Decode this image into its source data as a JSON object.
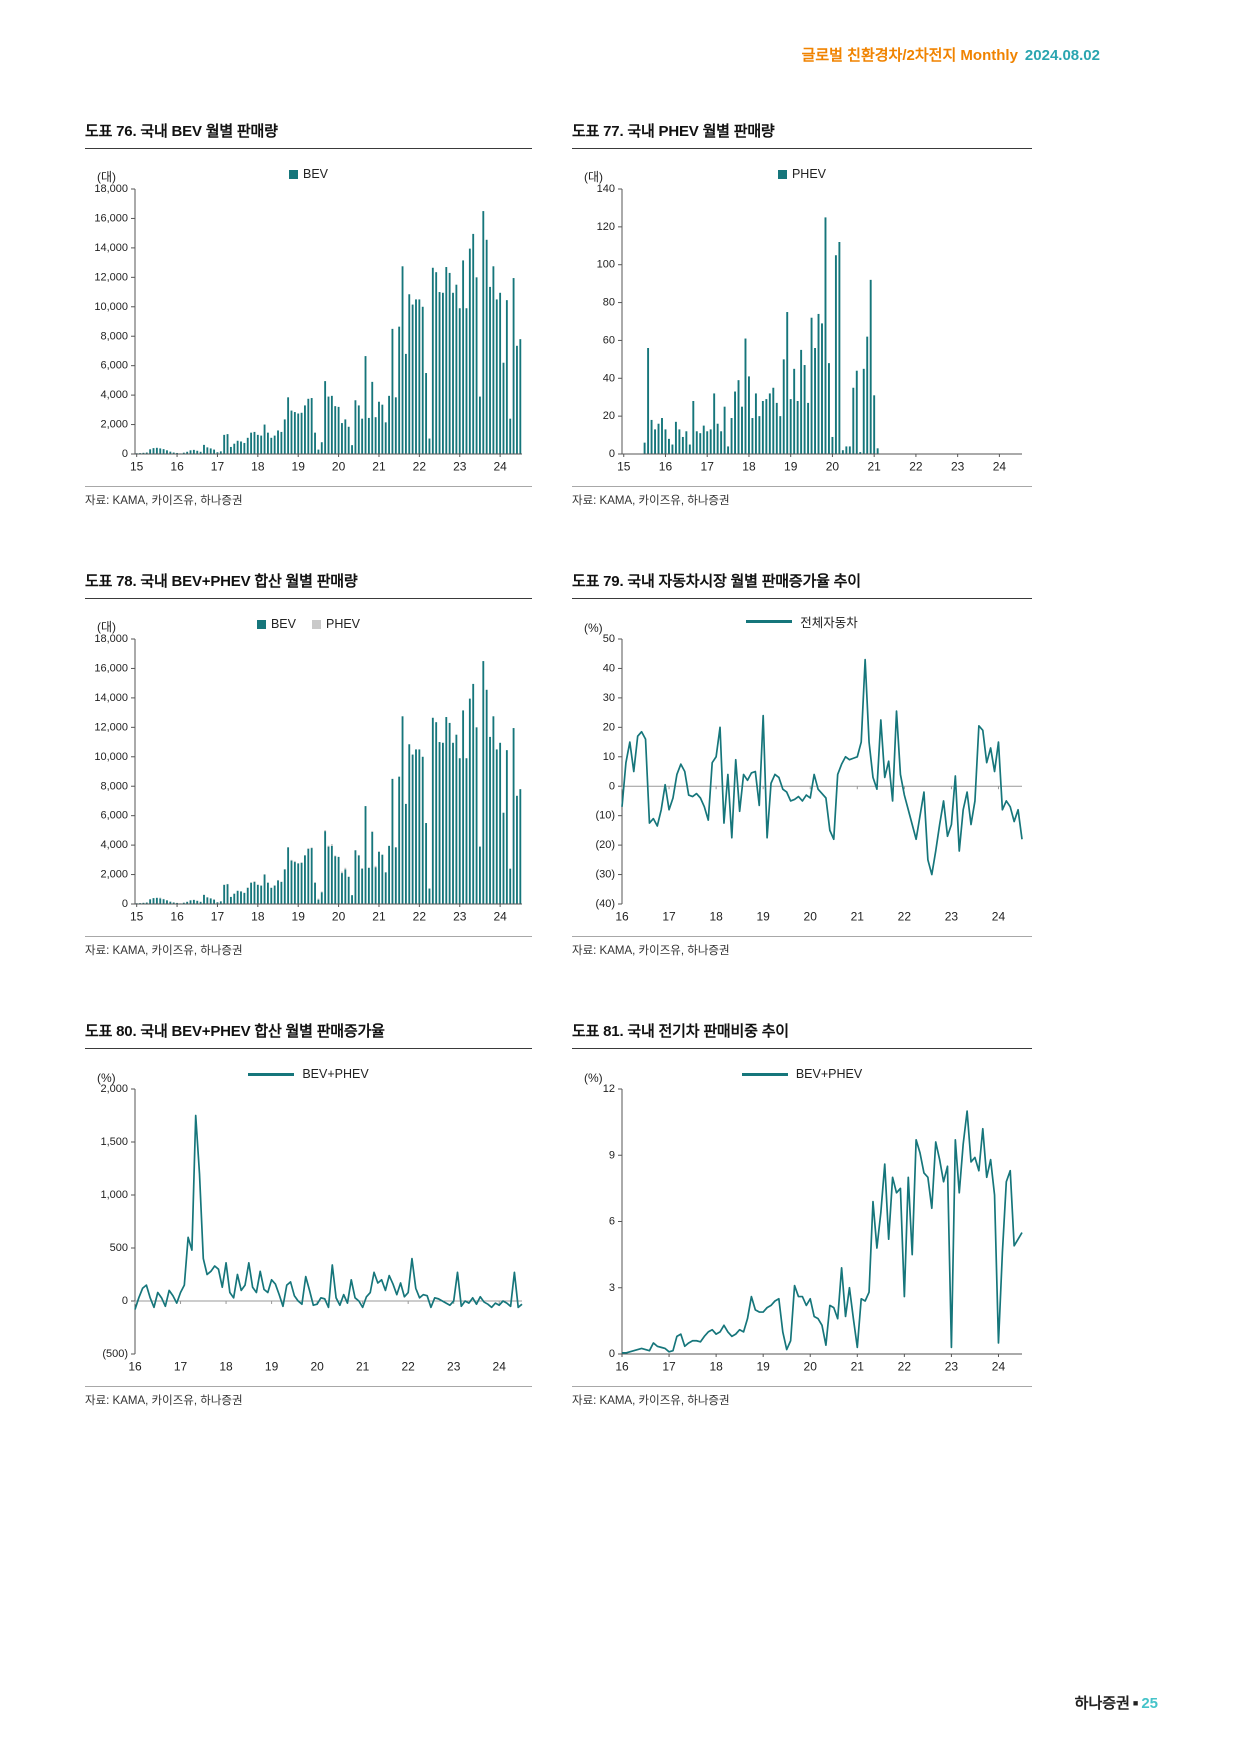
{
  "header": {
    "title": "글로벌 친환경차/2차전지 Monthly",
    "date": "2024.08.02"
  },
  "footer": {
    "brand": "하나증권",
    "page": "25"
  },
  "colors": {
    "accent_teal": "#16767b",
    "phev_gray": "#c9c9c9",
    "header_orange": "#f08300",
    "header_teal": "#2aa5b0",
    "footer_teal": "#44c3c9"
  },
  "chart_data": [
    {
      "id": "chart76",
      "title": "도표 76. 국내 BEV 월별 판매량",
      "unit": "(대)",
      "type": "bar",
      "y": {
        "min": 0,
        "max": 18000,
        "step": 2000
      },
      "x_years": [
        "15",
        "16",
        "17",
        "18",
        "19",
        "20",
        "21",
        "22",
        "23",
        "24"
      ],
      "x_start": "2015-01",
      "x_months_per_year": 12,
      "legend": [
        {
          "label": "BEV",
          "color": "#16767b"
        }
      ],
      "series": [
        {
          "name": "BEV",
          "color": "#16767b",
          "values": [
            50,
            60,
            80,
            100,
            320,
            400,
            420,
            380,
            330,
            250,
            160,
            100,
            70,
            40,
            90,
            150,
            250,
            280,
            220,
            150,
            620,
            450,
            380,
            300,
            120,
            180,
            1300,
            1350,
            480,
            700,
            900,
            850,
            750,
            1100,
            1450,
            1500,
            1300,
            1250,
            2000,
            1450,
            1100,
            1250,
            1600,
            1500,
            2350,
            3850,
            2950,
            2850,
            2750,
            2800,
            3300,
            3750,
            3800,
            1450,
            300,
            800,
            4950,
            3900,
            3950,
            3250,
            3200,
            2100,
            2350,
            1850,
            600,
            3650,
            3300,
            2400,
            6650,
            2450,
            4900,
            2500,
            3550,
            3350,
            2150,
            3950,
            8500,
            3850,
            8650,
            12750,
            6800,
            10850,
            10150,
            10500,
            10500,
            10000,
            5500,
            1050,
            12650,
            12350,
            11000,
            10950,
            12700,
            12300,
            10950,
            11500,
            9900,
            13150,
            9900,
            13950,
            14950,
            12000,
            3900,
            16500,
            14550,
            11350,
            12750,
            10500,
            10950,
            6200,
            10450,
            2400,
            11950,
            7350,
            7800
          ]
        }
      ],
      "source": "자료: KAMA, 카이즈유, 하나증권"
    },
    {
      "id": "chart77",
      "title": "도표 77. 국내 PHEV 월별 판매량",
      "unit": "(대)",
      "type": "bar",
      "y": {
        "min": 0,
        "max": 140,
        "step": 20
      },
      "x_years": [
        "15",
        "16",
        "17",
        "18",
        "19",
        "20",
        "21",
        "22",
        "23",
        "24"
      ],
      "x_start": "2015-01",
      "x_months_per_year": 12,
      "legend": [
        {
          "label": "PHEV",
          "color": "#16767b"
        }
      ],
      "series": [
        {
          "name": "PHEV",
          "color": "#16767b",
          "values": [
            0,
            0,
            0,
            0,
            0,
            0,
            6,
            56,
            18,
            13,
            16,
            19,
            13,
            8,
            5,
            17,
            13,
            9,
            12,
            5,
            28,
            12,
            11,
            15,
            12,
            13,
            32,
            16,
            12,
            25,
            4,
            19,
            33,
            39,
            25,
            61,
            41,
            19,
            32,
            20,
            28,
            29,
            32,
            35,
            27,
            20,
            50,
            75,
            29,
            45,
            28,
            55,
            47,
            27,
            72,
            56,
            74,
            69,
            125,
            48,
            9,
            105,
            112,
            2,
            4,
            4,
            35,
            44,
            1,
            45,
            62,
            92,
            31,
            3,
            0,
            0,
            0,
            0,
            0,
            0,
            0,
            0,
            0,
            0,
            0,
            0,
            0,
            0,
            0,
            0,
            0,
            0,
            0,
            0,
            0,
            0,
            0,
            0,
            0,
            0,
            0,
            0,
            0,
            0,
            0,
            0,
            0,
            0,
            0,
            0,
            0,
            0,
            0,
            0,
            0
          ]
        }
      ],
      "source": "자료: KAMA, 카이즈유, 하나증권"
    },
    {
      "id": "chart78",
      "title": "도표 78. 국내 BEV+PHEV 합산 월별 판매량",
      "unit": "(대)",
      "type": "stacked-bar",
      "y": {
        "min": 0,
        "max": 18000,
        "step": 2000
      },
      "x_years": [
        "15",
        "16",
        "17",
        "18",
        "19",
        "20",
        "21",
        "22",
        "23",
        "24"
      ],
      "x_start": "2015-01",
      "x_months_per_year": 12,
      "legend": [
        {
          "label": "BEV",
          "color": "#16767b"
        },
        {
          "label": "PHEV",
          "color": "#c9c9c9"
        }
      ],
      "series": [
        {
          "name": "BEV",
          "color": "#16767b",
          "values": [
            50,
            60,
            80,
            100,
            320,
            400,
            420,
            380,
            330,
            250,
            160,
            100,
            70,
            40,
            90,
            150,
            250,
            280,
            220,
            150,
            620,
            450,
            380,
            300,
            120,
            180,
            1300,
            1350,
            480,
            700,
            900,
            850,
            750,
            1100,
            1450,
            1500,
            1300,
            1250,
            2000,
            1450,
            1100,
            1250,
            1600,
            1500,
            2350,
            3850,
            2950,
            2850,
            2750,
            2800,
            3300,
            3750,
            3800,
            1450,
            300,
            800,
            4950,
            3900,
            3950,
            3250,
            3200,
            2100,
            2350,
            1850,
            600,
            3650,
            3300,
            2400,
            6650,
            2450,
            4900,
            2500,
            3550,
            3350,
            2150,
            3950,
            8500,
            3850,
            8650,
            12750,
            6800,
            10850,
            10150,
            10500,
            10500,
            10000,
            5500,
            1050,
            12650,
            12350,
            11000,
            10950,
            12700,
            12300,
            10950,
            11500,
            9900,
            13150,
            9900,
            13950,
            14950,
            12000,
            3900,
            16500,
            14550,
            11350,
            12750,
            10500,
            10950,
            6200,
            10450,
            2400,
            11950,
            7350,
            7800
          ]
        },
        {
          "name": "PHEV",
          "color": "#c9c9c9",
          "values": [
            0,
            0,
            0,
            0,
            0,
            0,
            6,
            56,
            18,
            13,
            16,
            19,
            13,
            8,
            5,
            17,
            13,
            9,
            12,
            5,
            28,
            12,
            11,
            15,
            12,
            13,
            32,
            16,
            12,
            25,
            4,
            19,
            33,
            39,
            25,
            61,
            41,
            19,
            32,
            20,
            28,
            29,
            32,
            35,
            27,
            20,
            50,
            75,
            29,
            45,
            28,
            55,
            47,
            27,
            72,
            56,
            74,
            69,
            125,
            48,
            9,
            105,
            112,
            2,
            4,
            4,
            35,
            44,
            1,
            45,
            62,
            92,
            31,
            3,
            0,
            0,
            0,
            0,
            0,
            0,
            0,
            0,
            0,
            0,
            0,
            0,
            0,
            0,
            0,
            0,
            0,
            0,
            0,
            0,
            0,
            0,
            0,
            0,
            0,
            0,
            0,
            0,
            0,
            0,
            0,
            0,
            0,
            0,
            0,
            0,
            0,
            0,
            0,
            0,
            0
          ]
        }
      ],
      "source": "자료: KAMA, 카이즈유, 하나증권"
    },
    {
      "id": "chart79",
      "title": "도표 79. 국내 자동차시장 월별 판매증가율 추이",
      "unit": "(%)",
      "type": "line",
      "y": {
        "min": -40,
        "max": 50,
        "step": 10
      },
      "x_years": [
        "16",
        "17",
        "18",
        "19",
        "20",
        "21",
        "22",
        "23",
        "24"
      ],
      "x_start": "2016-01",
      "x_months_per_year": 12,
      "legend": [
        {
          "label": "전체자동차",
          "color": "#16767b"
        }
      ],
      "series": [
        {
          "name": "전체자동차",
          "color": "#16767b",
          "values": [
            -7,
            8,
            15,
            5,
            17,
            18.5,
            16,
            -12.5,
            -11,
            -13.5,
            -8,
            0.5,
            -8,
            -4,
            4,
            7.5,
            5,
            -3,
            -3.5,
            -2.5,
            -4,
            -7,
            -11.5,
            8,
            10,
            20,
            -12.5,
            4,
            -17.5,
            9,
            -8.5,
            4,
            2,
            4.5,
            5,
            -6.5,
            24,
            -17.5,
            1,
            4,
            3,
            -1,
            -2,
            -5,
            -4.5,
            -3.5,
            -5,
            -3,
            -4,
            4,
            -1,
            -2.5,
            -4,
            -15,
            -18,
            4,
            7.5,
            10,
            9,
            9.5,
            10,
            15,
            43,
            15,
            3,
            -1,
            22.5,
            3,
            8.5,
            -5,
            25.5,
            4,
            -3,
            -8,
            -13,
            -18,
            -10,
            -2,
            -25,
            -30,
            -22,
            -13,
            -5,
            -17,
            -13,
            3.5,
            -22,
            -8,
            -2,
            -13,
            -5,
            20.5,
            19,
            8,
            13,
            5,
            15,
            -8,
            -5,
            -7,
            -12,
            -8,
            -18
          ]
        }
      ],
      "source": "자료: KAMA, 카이즈유, 하나증권"
    },
    {
      "id": "chart80",
      "title": "도표 80. 국내 BEV+PHEV 합산 월별 판매증가율",
      "unit": "(%)",
      "type": "line",
      "y": {
        "min": -500,
        "max": 2000,
        "step": 500
      },
      "x_years": [
        "16",
        "17",
        "18",
        "19",
        "20",
        "21",
        "22",
        "23",
        "24"
      ],
      "x_start": "2016-01",
      "x_months_per_year": 12,
      "legend": [
        {
          "label": "BEV+PHEV",
          "color": "#16767b"
        }
      ],
      "series": [
        {
          "name": "BEV+PHEV",
          "color": "#16767b",
          "values": [
            -80,
            30,
            120,
            150,
            30,
            -60,
            80,
            30,
            -50,
            100,
            50,
            -20,
            80,
            150,
            600,
            480,
            1750,
            1200,
            400,
            250,
            280,
            330,
            300,
            130,
            360,
            80,
            30,
            250,
            100,
            150,
            360,
            130,
            80,
            280,
            110,
            80,
            200,
            160,
            60,
            -50,
            150,
            180,
            50,
            0,
            -30,
            230,
            100,
            -40,
            -30,
            30,
            20,
            -60,
            340,
            30,
            -40,
            60,
            -20,
            200,
            30,
            0,
            -60,
            40,
            80,
            270,
            170,
            200,
            100,
            240,
            160,
            60,
            170,
            40,
            80,
            400,
            120,
            30,
            60,
            50,
            -60,
            30,
            20,
            0,
            -20,
            -40,
            0,
            270,
            -50,
            0,
            -20,
            30,
            -30,
            40,
            -10,
            -30,
            -60,
            -20,
            -40,
            0,
            -20,
            -50,
            270,
            -60,
            -30
          ]
        }
      ],
      "source": "자료: KAMA, 카이즈유, 하나증권"
    },
    {
      "id": "chart81",
      "title": "도표 81. 국내 전기차 판매비중 추이",
      "unit": "(%)",
      "type": "line",
      "y": {
        "min": 0,
        "max": 12,
        "step": 3
      },
      "x_years": [
        "16",
        "17",
        "18",
        "19",
        "20",
        "21",
        "22",
        "23",
        "24"
      ],
      "x_start": "2016-01",
      "x_months_per_year": 12,
      "legend": [
        {
          "label": "BEV+PHEV",
          "color": "#16767b"
        }
      ],
      "series": [
        {
          "name": "BEV+PHEV",
          "color": "#16767b",
          "values": [
            0.05,
            0.05,
            0.1,
            0.15,
            0.2,
            0.25,
            0.2,
            0.15,
            0.5,
            0.35,
            0.3,
            0.25,
            0.1,
            0.15,
            0.8,
            0.9,
            0.35,
            0.5,
            0.6,
            0.6,
            0.55,
            0.8,
            1.0,
            1.1,
            0.9,
            1.0,
            1.3,
            1.0,
            0.8,
            0.9,
            1.1,
            1.0,
            1.6,
            2.6,
            2.0,
            1.9,
            1.9,
            2.1,
            2.2,
            2.4,
            2.5,
            1.0,
            0.2,
            0.6,
            3.1,
            2.6,
            2.6,
            2.2,
            2.5,
            1.7,
            1.6,
            1.3,
            0.4,
            2.2,
            2.1,
            1.6,
            3.9,
            1.7,
            3.0,
            1.6,
            0.3,
            2.5,
            2.4,
            2.8,
            6.9,
            4.8,
            6.4,
            8.6,
            5.2,
            8.0,
            7.3,
            7.5,
            2.6,
            8.0,
            4.5,
            9.7,
            9.1,
            8.2,
            8.0,
            6.6,
            9.6,
            8.8,
            7.8,
            8.5,
            0.3,
            9.7,
            7.3,
            9.5,
            11.0,
            8.7,
            8.9,
            8.3,
            10.2,
            8.0,
            8.8,
            7.2,
            0.5,
            4.6,
            7.8,
            8.3,
            4.9,
            5.2,
            5.5
          ]
        }
      ],
      "source": "자료: KAMA, 카이즈유, 하나증권"
    }
  ]
}
